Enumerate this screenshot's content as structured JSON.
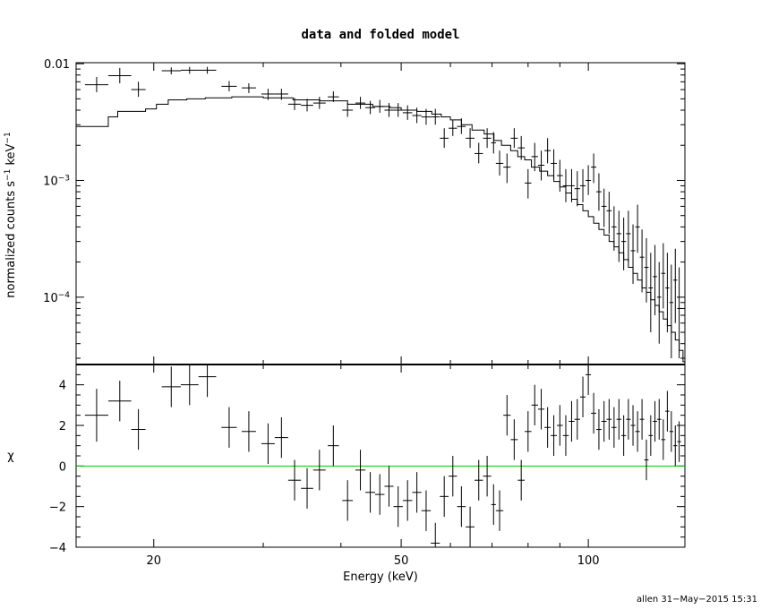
{
  "chart_data": [
    {
      "type": "step-line-with-errorbars",
      "panel": "top",
      "title": "data and folded model",
      "ylabel": "normalized counts s",
      "ylabel_sup1": "−1",
      "ylabel_mid": " keV",
      "ylabel_sup2": "−1",
      "xscale": "log",
      "yscale": "log",
      "xlim": [
        15,
        143
      ],
      "ylim": [
        2.65e-05,
        0.0102
      ],
      "ytick_labels": [
        {
          "value": 0.01,
          "base": "0.01",
          "exp": ""
        },
        {
          "value": 0.001,
          "base": "10",
          "exp": "−3"
        },
        {
          "value": 0.0001,
          "base": "10",
          "exp": "−4"
        }
      ],
      "data_points": [
        [
          15.5,
          16.9,
          0.0066,
          0.0057,
          0.0077
        ],
        [
          16.9,
          18.4,
          0.0079,
          0.0068,
          0.0092
        ],
        [
          18.4,
          19.4,
          0.006,
          0.0052,
          0.007
        ],
        [
          20.6,
          22.1,
          0.0087,
          0.0081,
          0.0093
        ],
        [
          22.1,
          23.6,
          0.0088,
          0.0082,
          0.0094
        ],
        [
          23.6,
          25.2,
          0.0088,
          0.0082,
          0.0094
        ],
        [
          25.7,
          27.2,
          0.0064,
          0.0058,
          0.0071
        ],
        [
          27.7,
          29.2,
          0.0062,
          0.0056,
          0.0068
        ],
        [
          29.8,
          31.3,
          0.0055,
          0.0049,
          0.0061
        ],
        [
          31.3,
          32.9,
          0.0055,
          0.0049,
          0.0061
        ],
        [
          32.9,
          34.5,
          0.0045,
          0.004,
          0.0051
        ],
        [
          34.5,
          36.1,
          0.0044,
          0.0039,
          0.005
        ],
        [
          36.1,
          37.8,
          0.0046,
          0.0041,
          0.0052
        ],
        [
          38.1,
          39.7,
          0.0052,
          0.0047,
          0.0058
        ],
        [
          40.2,
          41.8,
          0.004,
          0.0035,
          0.0046
        ],
        [
          42.2,
          43.8,
          0.0046,
          0.0041,
          0.0052
        ],
        [
          43.8,
          45.4,
          0.0042,
          0.0037,
          0.0048
        ],
        [
          45.4,
          47.0,
          0.0043,
          0.0038,
          0.0049
        ],
        [
          47.0,
          48.6,
          0.004,
          0.0035,
          0.0046
        ],
        [
          48.6,
          50.3,
          0.004,
          0.0035,
          0.0046
        ],
        [
          50.3,
          52.1,
          0.0038,
          0.0033,
          0.0044
        ],
        [
          52.1,
          53.9,
          0.0036,
          0.0031,
          0.0042
        ],
        [
          53.9,
          55.8,
          0.0035,
          0.003,
          0.0041
        ],
        [
          55.8,
          57.7,
          0.0035,
          0.003,
          0.0041
        ],
        [
          57.7,
          59.6,
          0.0023,
          0.0019,
          0.0028
        ],
        [
          59.6,
          61.5,
          0.0028,
          0.0024,
          0.0033
        ],
        [
          61.5,
          63.5,
          0.0029,
          0.0025,
          0.0034
        ],
        [
          63.5,
          65.6,
          0.0023,
          0.0019,
          0.0028
        ],
        [
          65.6,
          67.7,
          0.0017,
          0.0014,
          0.0021
        ],
        [
          67.7,
          69.8,
          0.0023,
          0.0019,
          0.0028
        ],
        [
          69.8,
          71.0,
          0.0021,
          0.0017,
          0.0026
        ],
        [
          71.0,
          73.0,
          0.0014,
          0.0011,
          0.0018
        ],
        [
          73.0,
          75.0,
          0.0013,
          0.00095,
          0.0017
        ],
        [
          75.0,
          77.0,
          0.0023,
          0.0019,
          0.0028
        ],
        [
          77.0,
          79.0,
          0.0019,
          0.0015,
          0.0024
        ],
        [
          79.0,
          81.0,
          0.00095,
          0.0007,
          0.00125
        ],
        [
          81.0,
          83.0,
          0.0016,
          0.0012,
          0.0021
        ],
        [
          83.0,
          85.0,
          0.00135,
          0.001,
          0.0018
        ],
        [
          85.0,
          87.0,
          0.0018,
          0.0014,
          0.0023
        ],
        [
          87.0,
          89.0,
          0.0014,
          0.00105,
          0.00185
        ],
        [
          89.0,
          91.0,
          0.0011,
          0.0008,
          0.0015
        ],
        [
          91.0,
          93.0,
          0.0009,
          0.00065,
          0.00125
        ],
        [
          93.0,
          95.0,
          0.0009,
          0.00065,
          0.00125
        ],
        [
          95.0,
          97.0,
          0.00085,
          0.0006,
          0.0012
        ],
        [
          97.0,
          99.0,
          0.0009,
          0.00065,
          0.00125
        ],
        [
          99.0,
          101.0,
          0.001,
          0.00075,
          0.00135
        ],
        [
          101.0,
          103.0,
          0.0013,
          0.00095,
          0.0017
        ],
        [
          103.0,
          105.0,
          0.0008,
          0.00055,
          0.00115
        ],
        [
          105.0,
          107.0,
          0.0006,
          0.0004,
          0.00085
        ],
        [
          107.0,
          109.0,
          0.00055,
          0.00035,
          0.0008
        ],
        [
          109.0,
          111.0,
          0.0004,
          0.00025,
          0.0006
        ],
        [
          111.0,
          113.0,
          0.00035,
          0.0002,
          0.00055
        ],
        [
          113.0,
          115.0,
          0.0003,
          0.00017,
          0.00048
        ],
        [
          115.0,
          117.0,
          0.00035,
          0.0002,
          0.00055
        ],
        [
          117.0,
          119.0,
          0.00025,
          0.00013,
          0.00042
        ],
        [
          119.0,
          121.0,
          0.0004,
          0.00024,
          0.00062
        ],
        [
          121.0,
          123.0,
          0.00022,
          0.00011,
          0.00038
        ],
        [
          123.0,
          125.0,
          0.00018,
          9e-05,
          0.00032
        ],
        [
          125.0,
          127.0,
          0.00012,
          5e-05,
          0.00024
        ],
        [
          127.0,
          129.0,
          0.00015,
          7e-05,
          0.00028
        ],
        [
          129.0,
          131.0,
          0.0001,
          4e-05,
          0.0002
        ],
        [
          131.0,
          133.0,
          0.00016,
          8e-05,
          0.00029
        ],
        [
          133.0,
          135.0,
          0.00012,
          5e-05,
          0.00024
        ],
        [
          135.0,
          137.0,
          9e-05,
          3e-05,
          0.00019
        ],
        [
          137.0,
          139.0,
          0.00014,
          6e-05,
          0.00026
        ],
        [
          139.0,
          141.0,
          8e-05,
          3e-05,
          0.00018
        ]
      ],
      "model_steps": [
        [
          15.0,
          0.0029
        ],
        [
          16.9,
          0.0035
        ],
        [
          17.5,
          0.0039
        ],
        [
          19.4,
          0.0041
        ],
        [
          20.2,
          0.0045
        ],
        [
          21.1,
          0.0049
        ],
        [
          22.6,
          0.005
        ],
        [
          24.2,
          0.0051
        ],
        [
          26.7,
          0.0052
        ],
        [
          30.0,
          0.0051
        ],
        [
          33.5,
          0.0049
        ],
        [
          37.0,
          0.0048
        ],
        [
          41.0,
          0.0045
        ],
        [
          45.0,
          0.0043
        ],
        [
          48.0,
          0.0042
        ],
        [
          50.0,
          0.004
        ],
        [
          53.0,
          0.0039
        ],
        [
          56.0,
          0.0037
        ],
        [
          58.0,
          0.0035
        ],
        [
          60.0,
          0.0033
        ],
        [
          62.5,
          0.003
        ],
        [
          65.0,
          0.0027
        ],
        [
          68.0,
          0.0025
        ],
        [
          70.5,
          0.0022
        ],
        [
          72.5,
          0.002
        ],
        [
          75.0,
          0.0018
        ],
        [
          77.0,
          0.0016
        ],
        [
          79.0,
          0.0015
        ],
        [
          81.0,
          0.0013
        ],
        [
          83.5,
          0.0012
        ],
        [
          86.0,
          0.0011
        ],
        [
          88.0,
          0.00098
        ],
        [
          90.0,
          0.00088
        ],
        [
          92.0,
          0.00078
        ],
        [
          94.0,
          0.00069
        ],
        [
          96.0,
          0.00062
        ],
        [
          98.0,
          0.00055
        ],
        [
          100.0,
          0.00049
        ],
        [
          102.0,
          0.00043
        ],
        [
          104.0,
          0.00038
        ],
        [
          106.0,
          0.00034
        ],
        [
          108.0,
          0.0003
        ],
        [
          110.0,
          0.00027
        ],
        [
          112.0,
          0.00024
        ],
        [
          114.0,
          0.00021
        ],
        [
          116.0,
          0.00018
        ],
        [
          118.0,
          0.00016
        ],
        [
          120.0,
          0.00014
        ],
        [
          122.0,
          0.00012
        ],
        [
          124.0,
          0.00011
        ],
        [
          126.0,
          9.5e-05
        ],
        [
          128.0,
          8.5e-05
        ],
        [
          130.0,
          7.5e-05
        ],
        [
          132.0,
          6.5e-05
        ],
        [
          134.0,
          5.7e-05
        ],
        [
          136.0,
          5e-05
        ],
        [
          138.0,
          4.3e-05
        ],
        [
          140.0,
          3.5e-05
        ],
        [
          142.0,
          2.8e-05
        ]
      ]
    },
    {
      "type": "residuals",
      "panel": "bottom",
      "ylabel": "χ",
      "xlabel": "Energy (keV)",
      "xscale": "log",
      "xlim": [
        15,
        143
      ],
      "ylim": [
        -4,
        5
      ],
      "xticks": [
        20,
        50,
        100
      ],
      "xtick_labels": [
        "20",
        "50",
        "100"
      ],
      "yticks": [
        -4,
        -2,
        0,
        2,
        4
      ],
      "ytick_labels": [
        "−4",
        "−2",
        "0",
        "2",
        "4"
      ],
      "zero_line_color": "#00c800",
      "points": [
        [
          15.5,
          16.9,
          2.5,
          1.3
        ],
        [
          16.9,
          18.4,
          3.2,
          1.0
        ],
        [
          18.4,
          19.4,
          1.8,
          1.0
        ],
        [
          20.6,
          22.1,
          3.9,
          1.0
        ],
        [
          22.1,
          23.6,
          4.0,
          1.0
        ],
        [
          23.6,
          25.2,
          4.4,
          1.0
        ],
        [
          25.7,
          27.2,
          1.9,
          1.0
        ],
        [
          27.7,
          29.2,
          1.7,
          1.0
        ],
        [
          29.8,
          31.3,
          1.1,
          1.0
        ],
        [
          31.3,
          32.9,
          1.4,
          1.0
        ],
        [
          32.9,
          34.5,
          -0.7,
          1.0
        ],
        [
          34.5,
          36.1,
          -1.1,
          1.0
        ],
        [
          36.1,
          37.8,
          -0.2,
          1.0
        ],
        [
          38.1,
          39.7,
          1.0,
          1.0
        ],
        [
          40.2,
          41.8,
          -1.7,
          1.0
        ],
        [
          42.2,
          43.8,
          -0.2,
          1.0
        ],
        [
          43.8,
          45.4,
          -1.3,
          1.0
        ],
        [
          45.4,
          47.0,
          -1.4,
          1.0
        ],
        [
          47.0,
          48.6,
          -1.0,
          1.0
        ],
        [
          48.6,
          50.3,
          -2.0,
          1.0
        ],
        [
          50.3,
          52.1,
          -1.7,
          1.0
        ],
        [
          52.1,
          53.9,
          -1.3,
          1.0
        ],
        [
          53.9,
          55.8,
          -2.2,
          1.0
        ],
        [
          55.8,
          57.7,
          -3.8,
          1.0
        ],
        [
          57.7,
          59.6,
          -1.5,
          1.0
        ],
        [
          59.6,
          61.5,
          -0.5,
          1.0
        ],
        [
          61.5,
          63.5,
          -2.0,
          1.0
        ],
        [
          63.5,
          65.6,
          -3.0,
          1.0
        ],
        [
          65.6,
          67.7,
          -0.7,
          1.0
        ],
        [
          67.7,
          69.8,
          -0.5,
          1.0
        ],
        [
          69.8,
          71.0,
          -1.9,
          1.0
        ],
        [
          71.0,
          73.0,
          -2.2,
          1.0
        ],
        [
          73.0,
          75.0,
          2.5,
          1.0
        ],
        [
          75.0,
          77.0,
          1.3,
          1.0
        ],
        [
          77.0,
          79.0,
          -0.7,
          1.0
        ],
        [
          79.0,
          81.0,
          1.7,
          1.0
        ],
        [
          81.0,
          83.0,
          3.0,
          1.0
        ],
        [
          83.0,
          85.0,
          2.8,
          1.0
        ],
        [
          85.0,
          87.0,
          1.9,
          1.0
        ],
        [
          87.0,
          89.0,
          1.5,
          1.0
        ],
        [
          89.0,
          91.0,
          2.0,
          1.0
        ],
        [
          91.0,
          93.0,
          1.5,
          1.0
        ],
        [
          93.0,
          95.0,
          2.2,
          1.0
        ],
        [
          95.0,
          97.0,
          2.3,
          1.0
        ],
        [
          97.0,
          99.0,
          3.4,
          1.0
        ],
        [
          99.0,
          101.0,
          4.5,
          1.0
        ],
        [
          101.0,
          103.0,
          2.6,
          1.0
        ],
        [
          103.0,
          105.0,
          1.8,
          1.0
        ],
        [
          105.0,
          107.0,
          2.2,
          1.0
        ],
        [
          107.0,
          109.0,
          2.3,
          1.0
        ],
        [
          109.0,
          111.0,
          1.9,
          1.0
        ],
        [
          111.0,
          113.0,
          2.3,
          1.0
        ],
        [
          113.0,
          115.0,
          1.5,
          1.0
        ],
        [
          115.0,
          117.0,
          2.3,
          1.0
        ],
        [
          117.0,
          119.0,
          2.0,
          1.0
        ],
        [
          119.0,
          121.0,
          1.7,
          1.0
        ],
        [
          121.0,
          123.0,
          2.3,
          1.0
        ],
        [
          123.0,
          125.0,
          0.3,
          1.0
        ],
        [
          125.0,
          127.0,
          1.5,
          1.0
        ],
        [
          127.0,
          129.0,
          2.2,
          1.0
        ],
        [
          129.0,
          131.0,
          2.3,
          1.0
        ],
        [
          131.0,
          133.0,
          1.3,
          1.0
        ],
        [
          133.0,
          135.0,
          2.7,
          1.0
        ],
        [
          135.0,
          137.0,
          1.7,
          1.0
        ],
        [
          137.0,
          139.0,
          1.0,
          1.0
        ],
        [
          139.0,
          141.0,
          1.2,
          1.0
        ]
      ]
    }
  ],
  "footer": "allen 31−May−2015 15:31"
}
